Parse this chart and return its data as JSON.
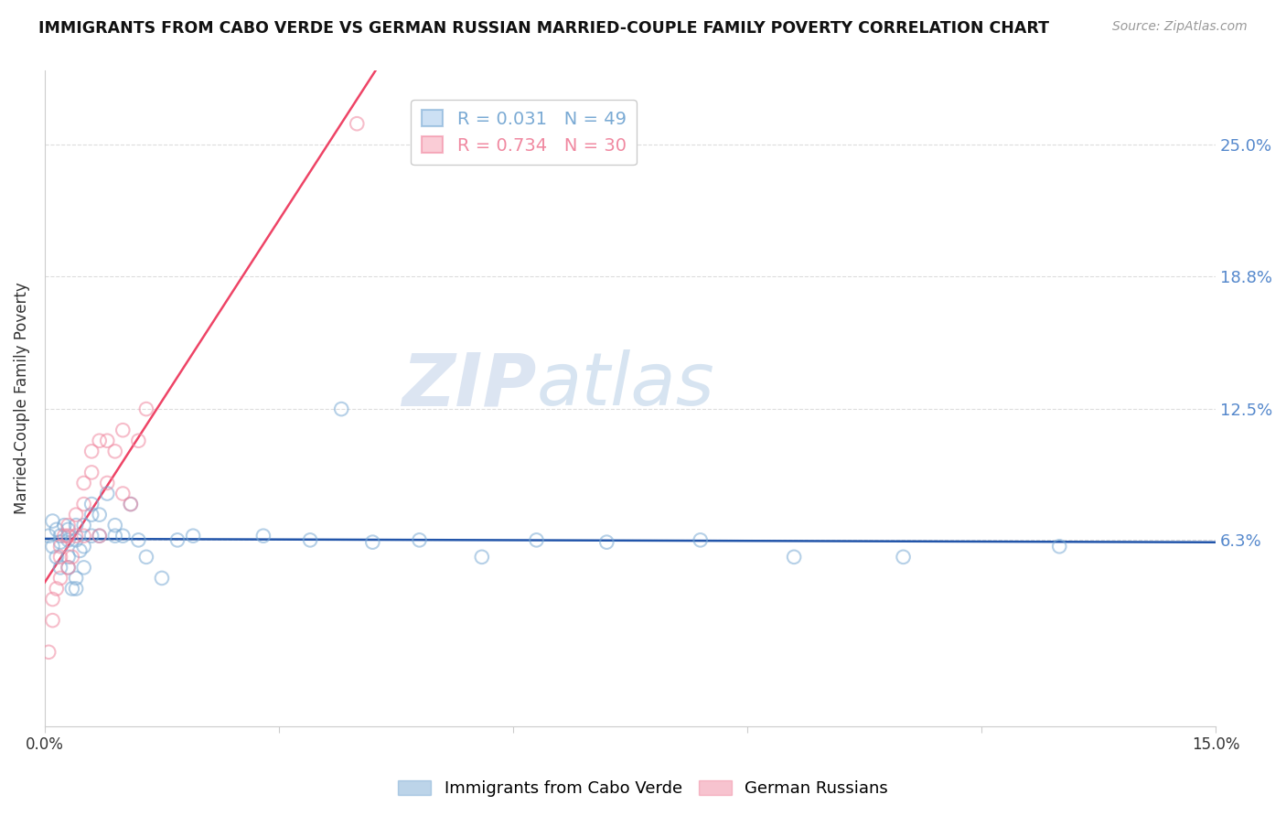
{
  "title": "IMMIGRANTS FROM CABO VERDE VS GERMAN RUSSIAN MARRIED-COUPLE FAMILY POVERTY CORRELATION CHART",
  "source": "Source: ZipAtlas.com",
  "ylabel": "Married-Couple Family Poverty",
  "ytick_labels": [
    "25.0%",
    "18.8%",
    "12.5%",
    "6.3%"
  ],
  "ytick_values": [
    0.25,
    0.188,
    0.125,
    0.063
  ],
  "xlim": [
    0.0,
    0.15
  ],
  "ylim": [
    -0.025,
    0.285
  ],
  "legend1_label": "R = 0.031   N = 49",
  "legend2_label": "R = 0.734   N = 30",
  "legend1_color": "#7aaad4",
  "legend2_color": "#f088a0",
  "trend1_color": "#2255aa",
  "trend2_color": "#ee4466",
  "cabo_verde_x": [
    0.0005,
    0.001,
    0.0015,
    0.001,
    0.0015,
    0.002,
    0.002,
    0.002,
    0.0025,
    0.003,
    0.003,
    0.003,
    0.003,
    0.0035,
    0.004,
    0.004,
    0.004,
    0.004,
    0.0045,
    0.005,
    0.005,
    0.005,
    0.006,
    0.006,
    0.006,
    0.007,
    0.007,
    0.008,
    0.009,
    0.009,
    0.01,
    0.011,
    0.012,
    0.013,
    0.015,
    0.017,
    0.019,
    0.028,
    0.034,
    0.038,
    0.042,
    0.048,
    0.056,
    0.063,
    0.072,
    0.084,
    0.096,
    0.11,
    0.13
  ],
  "cabo_verde_y": [
    0.065,
    0.072,
    0.068,
    0.06,
    0.055,
    0.062,
    0.065,
    0.05,
    0.07,
    0.063,
    0.068,
    0.055,
    0.05,
    0.04,
    0.04,
    0.045,
    0.063,
    0.07,
    0.058,
    0.05,
    0.06,
    0.07,
    0.075,
    0.08,
    0.065,
    0.075,
    0.065,
    0.085,
    0.07,
    0.065,
    0.065,
    0.08,
    0.063,
    0.055,
    0.045,
    0.063,
    0.065,
    0.065,
    0.063,
    0.125,
    0.062,
    0.063,
    0.055,
    0.063,
    0.062,
    0.063,
    0.055,
    0.055,
    0.06
  ],
  "german_russian_x": [
    0.0005,
    0.001,
    0.001,
    0.0015,
    0.002,
    0.002,
    0.002,
    0.0025,
    0.003,
    0.003,
    0.003,
    0.0035,
    0.004,
    0.004,
    0.005,
    0.005,
    0.005,
    0.006,
    0.006,
    0.007,
    0.007,
    0.008,
    0.008,
    0.009,
    0.01,
    0.01,
    0.011,
    0.012,
    0.013,
    0.04
  ],
  "german_russian_y": [
    0.01,
    0.025,
    0.035,
    0.04,
    0.045,
    0.055,
    0.06,
    0.065,
    0.07,
    0.065,
    0.05,
    0.055,
    0.075,
    0.065,
    0.08,
    0.09,
    0.065,
    0.095,
    0.105,
    0.11,
    0.065,
    0.11,
    0.09,
    0.105,
    0.115,
    0.085,
    0.08,
    0.11,
    0.125,
    0.26
  ],
  "watermark_zip": "ZIP",
  "watermark_atlas": "atlas",
  "background_color": "#ffffff",
  "grid_color": "#dddddd"
}
